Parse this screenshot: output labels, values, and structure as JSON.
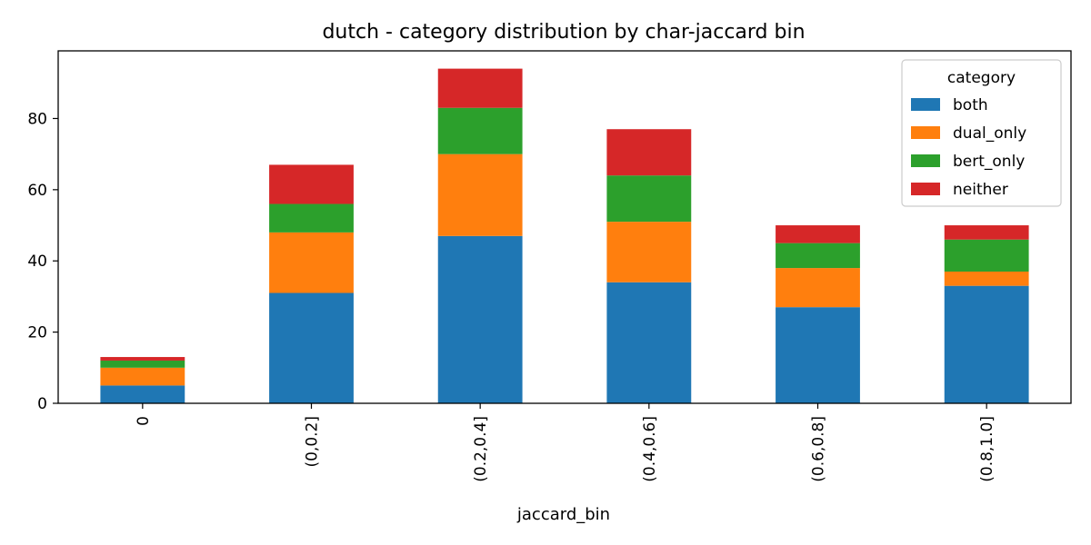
{
  "chart_data": {
    "type": "bar",
    "stacked": true,
    "title": "dutch - category distribution by char-jaccard bin",
    "xlabel": "jaccard_bin",
    "ylabel": "",
    "categories": [
      "0",
      "(0,0.2]",
      "(0.2,0.4]",
      "(0.4,0.6]",
      "(0.6,0.8]",
      "(0.8,1.0]"
    ],
    "ylim": [
      0,
      99
    ],
    "yticks": [
      0,
      20,
      40,
      60,
      80
    ],
    "grid": false,
    "legend": {
      "title": "category",
      "placement": "top-right"
    },
    "series": [
      {
        "name": "both",
        "color": "#1f77b4",
        "values": [
          5,
          31,
          47,
          34,
          27,
          33
        ]
      },
      {
        "name": "dual_only",
        "color": "#ff7f0e",
        "values": [
          5,
          17,
          23,
          17,
          11,
          4
        ]
      },
      {
        "name": "bert_only",
        "color": "#2ca02c",
        "values": [
          2,
          8,
          13,
          13,
          7,
          9
        ]
      },
      {
        "name": "neither",
        "color": "#d62728",
        "values": [
          1,
          11,
          11,
          13,
          5,
          4
        ]
      }
    ]
  }
}
